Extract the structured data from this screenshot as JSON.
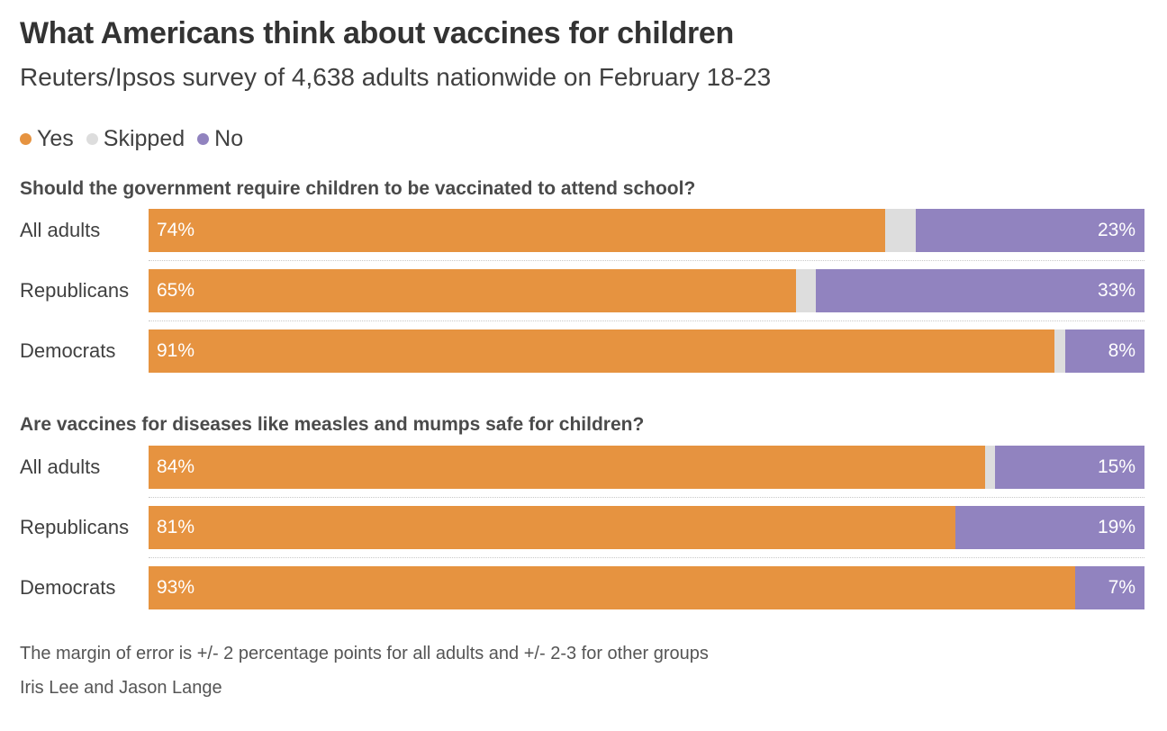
{
  "title": "What Americans think about vaccines for children",
  "subtitle": "Reuters/Ipsos survey of 4,638 adults nationwide on February 18-23",
  "legend": [
    {
      "label": "Yes",
      "color": "#e69340"
    },
    {
      "label": "Skipped",
      "color": "#dddddd"
    },
    {
      "label": "No",
      "color": "#9183bf"
    }
  ],
  "chart_data": [
    {
      "type": "bar",
      "stacked": true,
      "orientation": "horizontal",
      "title": "Should the government require children to be vaccinated to attend school?",
      "categories": [
        "All adults",
        "Republicans",
        "Democrats"
      ],
      "series": [
        {
          "name": "Yes",
          "values": [
            74,
            65,
            91
          ],
          "labels": [
            "74%",
            "65%",
            "91%"
          ]
        },
        {
          "name": "Skipped",
          "values": [
            3,
            2,
            1
          ]
        },
        {
          "name": "No",
          "values": [
            23,
            33,
            8
          ],
          "labels": [
            "23%",
            "33%",
            "8%"
          ]
        }
      ],
      "xlim": [
        0,
        100
      ]
    },
    {
      "type": "bar",
      "stacked": true,
      "orientation": "horizontal",
      "title": "Are vaccines for diseases like measles and mumps safe for children?",
      "categories": [
        "All adults",
        "Republicans",
        "Democrats"
      ],
      "series": [
        {
          "name": "Yes",
          "values": [
            84,
            81,
            93
          ],
          "labels": [
            "84%",
            "81%",
            "93%"
          ]
        },
        {
          "name": "Skipped",
          "values": [
            1,
            0,
            0
          ]
        },
        {
          "name": "No",
          "values": [
            15,
            19,
            7
          ],
          "labels": [
            "15%",
            "19%",
            "7%"
          ]
        }
      ],
      "xlim": [
        0,
        100
      ]
    }
  ],
  "footnote": "The margin of error is +/- 2 percentage points for all adults and +/- 2-3 for other groups",
  "credit": "Iris Lee and Jason Lange"
}
